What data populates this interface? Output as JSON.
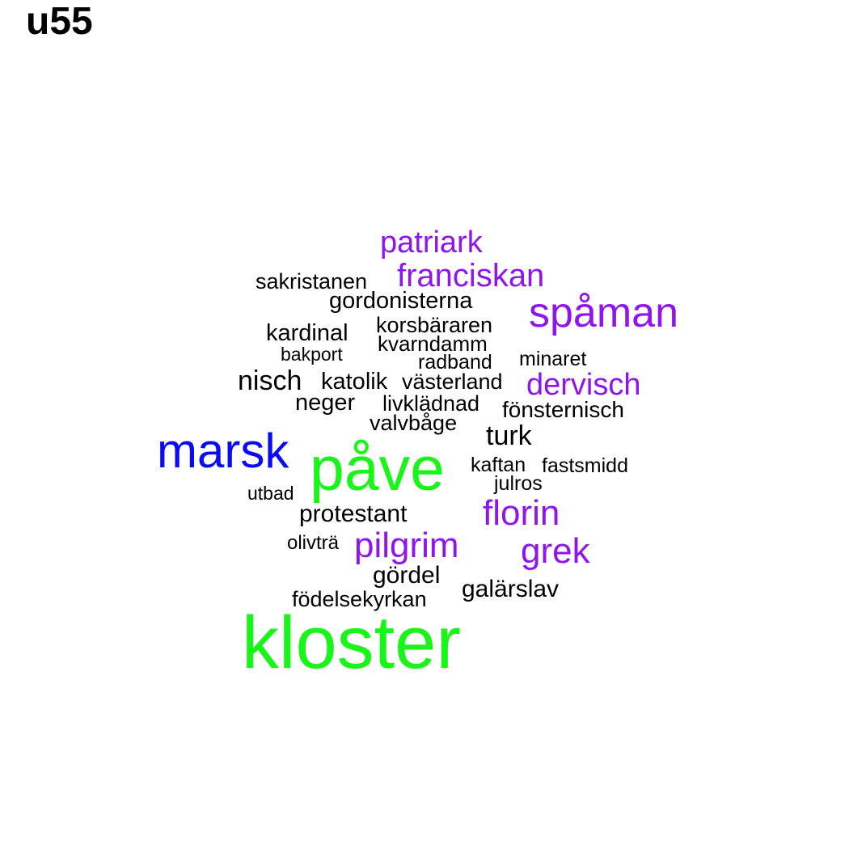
{
  "title": "u55",
  "colors": {
    "black": "#000000",
    "purple": "#8f14ee",
    "blue": "#0a0af5",
    "green": "#19f519"
  },
  "words": [
    {
      "text": "kloster",
      "color": "green"
    },
    {
      "text": "påve",
      "color": "green"
    },
    {
      "text": "marsk",
      "color": "blue"
    },
    {
      "text": "spåman",
      "color": "purple"
    },
    {
      "text": "franciskan",
      "color": "purple"
    },
    {
      "text": "patriark",
      "color": "purple"
    },
    {
      "text": "dervisch",
      "color": "purple"
    },
    {
      "text": "florin",
      "color": "purple"
    },
    {
      "text": "pilgrim",
      "color": "purple"
    },
    {
      "text": "grek",
      "color": "purple"
    },
    {
      "text": "sakristanen",
      "color": "black"
    },
    {
      "text": "gordonisterna",
      "color": "black"
    },
    {
      "text": "kardinal",
      "color": "black"
    },
    {
      "text": "korsbäraren",
      "color": "black"
    },
    {
      "text": "kvarndamm",
      "color": "black"
    },
    {
      "text": "bakport",
      "color": "black"
    },
    {
      "text": "radband",
      "color": "black"
    },
    {
      "text": "minaret",
      "color": "black"
    },
    {
      "text": "nisch",
      "color": "black"
    },
    {
      "text": "katolik",
      "color": "black"
    },
    {
      "text": "västerland",
      "color": "black"
    },
    {
      "text": "neger",
      "color": "black"
    },
    {
      "text": "livklädnad",
      "color": "black"
    },
    {
      "text": "fönsternisch",
      "color": "black"
    },
    {
      "text": "valvbåge",
      "color": "black"
    },
    {
      "text": "turk",
      "color": "black"
    },
    {
      "text": "kaftan",
      "color": "black"
    },
    {
      "text": "fastsmidd",
      "color": "black"
    },
    {
      "text": "julros",
      "color": "black"
    },
    {
      "text": "utbad",
      "color": "black"
    },
    {
      "text": "protestant",
      "color": "black"
    },
    {
      "text": "olivträ",
      "color": "black"
    },
    {
      "text": "gördel",
      "color": "black"
    },
    {
      "text": "galärslav",
      "color": "black"
    },
    {
      "text": "födelsekyrkan",
      "color": "black"
    }
  ]
}
